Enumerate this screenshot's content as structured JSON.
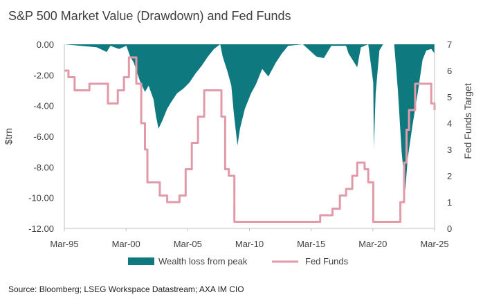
{
  "chart_data": {
    "type": "area",
    "title": "S&P 500 Market Value (Drawdown) and Fed Funds",
    "source": "Source: Bloomberg; LSEG Workspace Datastream; AXA IM CIO",
    "xlabel": "",
    "ylabel_left": "$trn",
    "ylabel_right": "Fed Funds Target",
    "x_tick_labels": [
      "Mar-95",
      "Mar-00",
      "Mar-05",
      "Mar-10",
      "Mar-15",
      "Mar-20",
      "Mar-25"
    ],
    "x_range": [
      1995.17,
      2025.17
    ],
    "y_left_range": [
      -12,
      0
    ],
    "y_left_ticks": [
      "0.00",
      "-2.00",
      "-4.00",
      "-6.00",
      "-8.00",
      "-10.00",
      "-12.00"
    ],
    "y_right_range": [
      0,
      7
    ],
    "y_right_ticks": [
      "0",
      "1",
      "2",
      "3",
      "4",
      "5",
      "6",
      "7"
    ],
    "grid": false,
    "legend_position": "bottom",
    "series": [
      {
        "name": "Wealth loss from peak",
        "type": "area",
        "axis": "left",
        "color": "#0e7a80",
        "points": [
          [
            1995.17,
            0
          ],
          [
            1996.5,
            -0.1
          ],
          [
            1997.8,
            -0.2
          ],
          [
            1998.6,
            -0.5
          ],
          [
            1998.9,
            -0.1
          ],
          [
            1999.6,
            -0.3
          ],
          [
            2000.2,
            -0.1
          ],
          [
            2000.5,
            -0.8
          ],
          [
            2000.8,
            -1.2
          ],
          [
            2001.0,
            -1.7
          ],
          [
            2001.3,
            -2.4
          ],
          [
            2001.7,
            -3.1
          ],
          [
            2002.0,
            -2.7
          ],
          [
            2002.4,
            -3.6
          ],
          [
            2002.6,
            -4.7
          ],
          [
            2002.8,
            -5.5
          ],
          [
            2003.1,
            -5.0
          ],
          [
            2003.5,
            -4.2
          ],
          [
            2003.8,
            -3.8
          ],
          [
            2004.3,
            -3.2
          ],
          [
            2004.8,
            -2.9
          ],
          [
            2005.3,
            -2.5
          ],
          [
            2005.8,
            -1.9
          ],
          [
            2006.3,
            -1.4
          ],
          [
            2006.8,
            -0.8
          ],
          [
            2007.3,
            -0.3
          ],
          [
            2007.8,
            0
          ],
          [
            2008.0,
            -0.8
          ],
          [
            2008.4,
            -1.8
          ],
          [
            2008.7,
            -2.7
          ],
          [
            2008.9,
            -4.5
          ],
          [
            2009.2,
            -6.6
          ],
          [
            2009.4,
            -5.5
          ],
          [
            2009.8,
            -4.2
          ],
          [
            2010.3,
            -3.2
          ],
          [
            2010.7,
            -2.6
          ],
          [
            2011.2,
            -1.6
          ],
          [
            2011.7,
            -2.1
          ],
          [
            2012.3,
            -1.2
          ],
          [
            2012.8,
            -0.6
          ],
          [
            2013.3,
            -0.1
          ],
          [
            2014.5,
            0
          ],
          [
            2015.6,
            -0.8
          ],
          [
            2016.2,
            -0.9
          ],
          [
            2016.8,
            -0.1
          ],
          [
            2018.0,
            -0.1
          ],
          [
            2018.2,
            -0.6
          ],
          [
            2018.9,
            -1.5
          ],
          [
            2019.2,
            -0.2
          ],
          [
            2019.8,
            0
          ],
          [
            2020.2,
            -2.5
          ],
          [
            2020.25,
            -6.8
          ],
          [
            2020.4,
            -3.2
          ],
          [
            2020.7,
            -0.4
          ],
          [
            2021.0,
            0
          ],
          [
            2021.9,
            0
          ],
          [
            2022.2,
            -3.0
          ],
          [
            2022.5,
            -7.0
          ],
          [
            2022.8,
            -9.5
          ],
          [
            2023.0,
            -7.4
          ],
          [
            2023.4,
            -5.2
          ],
          [
            2023.8,
            -3.2
          ],
          [
            2024.2,
            -1.0
          ],
          [
            2024.5,
            -0.4
          ],
          [
            2024.9,
            -0.3
          ],
          [
            2025.17,
            -0.6
          ]
        ]
      },
      {
        "name": "Fed Funds",
        "type": "line",
        "axis": "right",
        "color": "#e39aa8",
        "points": [
          [
            1995.17,
            6.0
          ],
          [
            1995.5,
            5.75
          ],
          [
            1996.0,
            5.25
          ],
          [
            1997.2,
            5.5
          ],
          [
            1998.7,
            4.75
          ],
          [
            1999.5,
            5.25
          ],
          [
            2000.0,
            5.75
          ],
          [
            2000.4,
            6.5
          ],
          [
            2001.0,
            5.5
          ],
          [
            2001.4,
            4.0
          ],
          [
            2001.7,
            3.0
          ],
          [
            2001.9,
            1.75
          ],
          [
            2002.9,
            1.25
          ],
          [
            2003.5,
            1.0
          ],
          [
            2004.5,
            1.25
          ],
          [
            2005.0,
            2.25
          ],
          [
            2005.5,
            3.25
          ],
          [
            2006.0,
            4.25
          ],
          [
            2006.5,
            5.25
          ],
          [
            2007.7,
            5.25
          ],
          [
            2007.9,
            4.25
          ],
          [
            2008.2,
            2.25
          ],
          [
            2008.5,
            2.0
          ],
          [
            2008.95,
            0.25
          ],
          [
            2015.9,
            0.5
          ],
          [
            2016.9,
            0.75
          ],
          [
            2017.5,
            1.25
          ],
          [
            2018.0,
            1.5
          ],
          [
            2018.5,
            2.0
          ],
          [
            2018.9,
            2.5
          ],
          [
            2019.5,
            2.25
          ],
          [
            2019.8,
            1.75
          ],
          [
            2020.2,
            0.25
          ],
          [
            2022.1,
            0.25
          ],
          [
            2022.4,
            1.0
          ],
          [
            2022.7,
            2.5
          ],
          [
            2022.9,
            3.75
          ],
          [
            2023.1,
            4.5
          ],
          [
            2023.6,
            5.5
          ],
          [
            2024.7,
            5.5
          ],
          [
            2024.9,
            4.75
          ],
          [
            2025.17,
            4.5
          ]
        ]
      }
    ]
  }
}
